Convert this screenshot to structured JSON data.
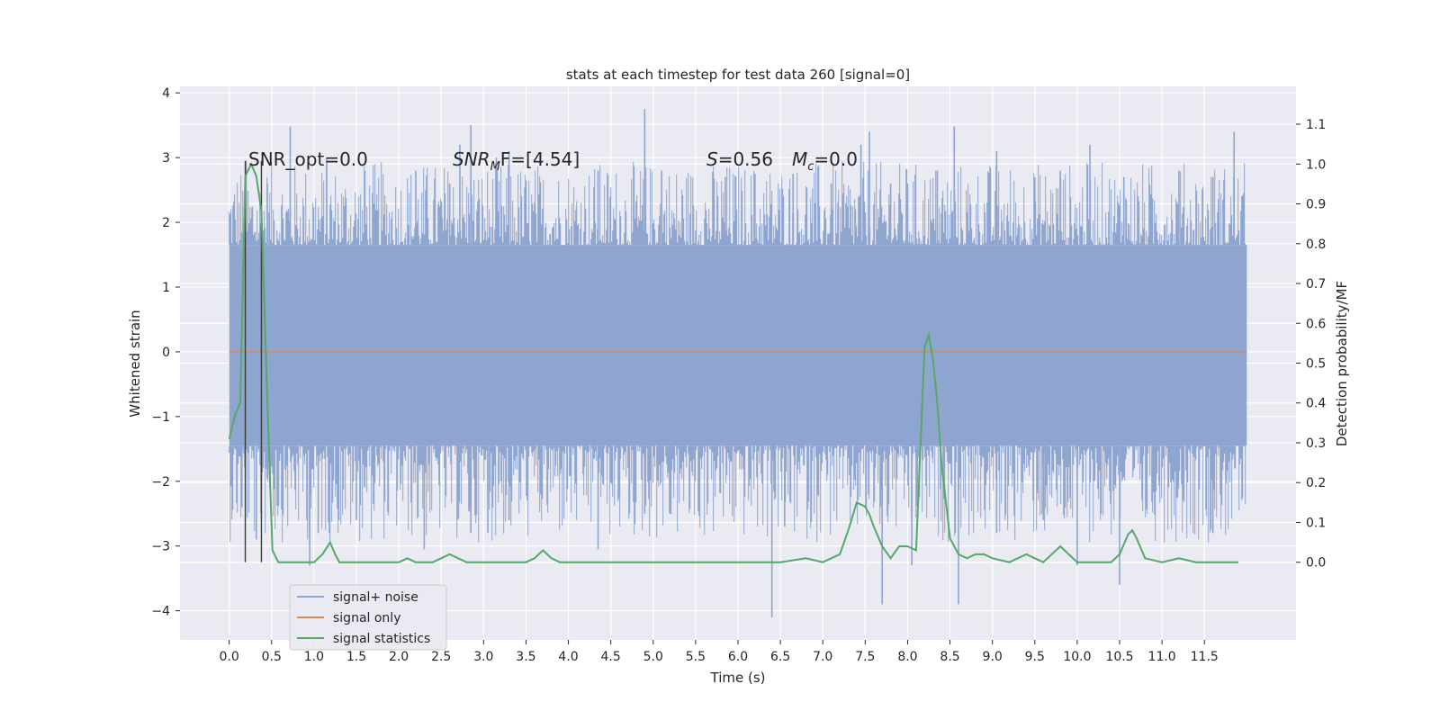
{
  "chart_data": {
    "type": "line",
    "title": "stats at each timestep for test data 260 [signal=0]",
    "xlabel": "Time (s)",
    "ylabel": "Whitened strain",
    "y2label": "Detection probability/MF",
    "xlim": [
      -0.58,
      12.58
    ],
    "ylim": [
      -4.45,
      4.1
    ],
    "y2lim": [
      -0.195,
      1.195
    ],
    "xticks": [
      "0.0",
      "0.5",
      "1.0",
      "1.5",
      "2.0",
      "2.5",
      "3.0",
      "3.5",
      "4.0",
      "4.5",
      "5.0",
      "5.5",
      "6.0",
      "6.5",
      "7.0",
      "7.5",
      "8.0",
      "8.5",
      "9.0",
      "9.5",
      "10.0",
      "10.5",
      "11.0",
      "11.5"
    ],
    "yticks": [
      "4",
      "3",
      "2",
      "1",
      "0",
      "−1",
      "−2",
      "−3",
      "−4"
    ],
    "y2ticks": [
      "1.1",
      "1.0",
      "0.9",
      "0.8",
      "0.7",
      "0.6",
      "0.5",
      "0.4",
      "0.3",
      "0.2",
      "0.1",
      "0.0"
    ],
    "grid": true,
    "legend_position": "lower-left",
    "annotations": {
      "snr_opt": "SNR_opt=0.0",
      "snr_mf_sym": "SNR",
      "snr_mf_sub": "M",
      "snr_mf_rest": "F=[4.54]",
      "s_sym": "S",
      "s_rest": "=0.56",
      "mc_sym": "M",
      "mc_sub": "c",
      "mc_rest": "=0.0"
    },
    "vlines": [
      0.19,
      0.38
    ],
    "vline_range": [
      -3.25,
      2.95
    ],
    "series": [
      {
        "name": "signal+ noise",
        "color": "#8ea5cf",
        "noise_tmin": 0.0,
        "noise_tmax": 12.0,
        "band_upper": 1.65,
        "band_lower": -1.45,
        "spikes_up": [
          [
            0.2,
            2.95
          ],
          [
            0.45,
            2.6
          ],
          [
            0.72,
            3.48
          ],
          [
            1.15,
            3.0
          ],
          [
            1.6,
            2.8
          ],
          [
            2.2,
            2.8
          ],
          [
            2.6,
            2.6
          ],
          [
            2.72,
            3.2
          ],
          [
            2.85,
            3.5
          ],
          [
            3.15,
            3.0
          ],
          [
            3.3,
            3.1
          ],
          [
            4.35,
            2.8
          ],
          [
            4.9,
            3.75
          ],
          [
            5.1,
            2.8
          ],
          [
            5.85,
            2.7
          ],
          [
            6.2,
            2.75
          ],
          [
            6.65,
            2.75
          ],
          [
            7.1,
            2.6
          ],
          [
            7.45,
            3.2
          ],
          [
            7.55,
            3.4
          ],
          [
            7.8,
            2.6
          ],
          [
            8.0,
            2.6
          ],
          [
            8.35,
            2.8
          ],
          [
            8.55,
            3.48
          ],
          [
            9.05,
            3.1
          ],
          [
            9.5,
            2.7
          ],
          [
            9.8,
            2.8
          ],
          [
            10.15,
            3.2
          ],
          [
            10.55,
            2.7
          ],
          [
            11.2,
            2.8
          ],
          [
            11.6,
            2.7
          ],
          [
            11.85,
            3.4
          ]
        ],
        "spikes_down": [
          [
            0.15,
            -2.4
          ],
          [
            0.32,
            -2.9
          ],
          [
            0.95,
            -3.3
          ],
          [
            1.05,
            -2.8
          ],
          [
            1.5,
            -2.6
          ],
          [
            2.3,
            -3.05
          ],
          [
            2.85,
            -2.8
          ],
          [
            3.05,
            -2.8
          ],
          [
            3.3,
            -2.6
          ],
          [
            4.35,
            -3.05
          ],
          [
            4.9,
            -2.5
          ],
          [
            5.2,
            -2.5
          ],
          [
            6.4,
            -4.1
          ],
          [
            6.55,
            -2.7
          ],
          [
            7.7,
            -3.9
          ],
          [
            8.05,
            -3.3
          ],
          [
            8.6,
            -3.9
          ],
          [
            9.05,
            -2.8
          ],
          [
            9.6,
            -2.6
          ],
          [
            10.0,
            -3.3
          ],
          [
            10.5,
            -3.6
          ],
          [
            11.6,
            -2.8
          ]
        ]
      },
      {
        "name": "signal only",
        "color": "#dd8452",
        "x": [
          0.0,
          12.0
        ],
        "y": [
          0.0,
          0.0
        ]
      },
      {
        "name": "signal statistics",
        "color": "#55a868",
        "axis": "right",
        "x": [
          0.0,
          0.07,
          0.13,
          0.19,
          0.26,
          0.32,
          0.38,
          0.45,
          0.51,
          0.58,
          0.64,
          0.7,
          1.0,
          1.1,
          1.19,
          1.25,
          1.3,
          1.4,
          1.6,
          1.8,
          2.0,
          2.1,
          2.2,
          2.4,
          2.5,
          2.6,
          2.7,
          2.8,
          3.0,
          3.5,
          3.6,
          3.7,
          3.8,
          3.9,
          4.0,
          4.5,
          5.0,
          6.0,
          6.5,
          6.8,
          7.0,
          7.2,
          7.3,
          7.4,
          7.5,
          7.55,
          7.6,
          7.7,
          7.8,
          7.9,
          8.0,
          8.1,
          8.2,
          8.25,
          8.3,
          8.35,
          8.4,
          8.5,
          8.6,
          8.7,
          8.8,
          8.9,
          9.0,
          9.2,
          9.4,
          9.6,
          9.8,
          9.9,
          10.0,
          10.2,
          10.4,
          10.5,
          10.6,
          10.65,
          10.7,
          10.8,
          11.0,
          11.2,
          11.4,
          11.5,
          11.9
        ],
        "y": [
          0.31,
          0.37,
          0.4,
          0.97,
          1.0,
          0.97,
          0.88,
          0.4,
          0.03,
          0.0,
          0.0,
          0.0,
          0.0,
          0.02,
          0.05,
          0.02,
          0.0,
          0.0,
          0.0,
          0.0,
          0.0,
          0.01,
          0.0,
          0.0,
          0.01,
          0.02,
          0.01,
          0.0,
          0.0,
          0.0,
          0.01,
          0.03,
          0.01,
          0.0,
          0.0,
          0.0,
          0.0,
          0.0,
          0.0,
          0.01,
          0.0,
          0.02,
          0.08,
          0.15,
          0.14,
          0.12,
          0.09,
          0.04,
          0.01,
          0.04,
          0.04,
          0.03,
          0.54,
          0.57,
          0.51,
          0.4,
          0.25,
          0.06,
          0.02,
          0.01,
          0.02,
          0.02,
          0.01,
          0.0,
          0.02,
          0.0,
          0.04,
          0.02,
          0.0,
          0.0,
          0.0,
          0.02,
          0.07,
          0.08,
          0.06,
          0.01,
          0.0,
          0.01,
          0.0,
          0.0,
          0.0
        ]
      }
    ]
  }
}
